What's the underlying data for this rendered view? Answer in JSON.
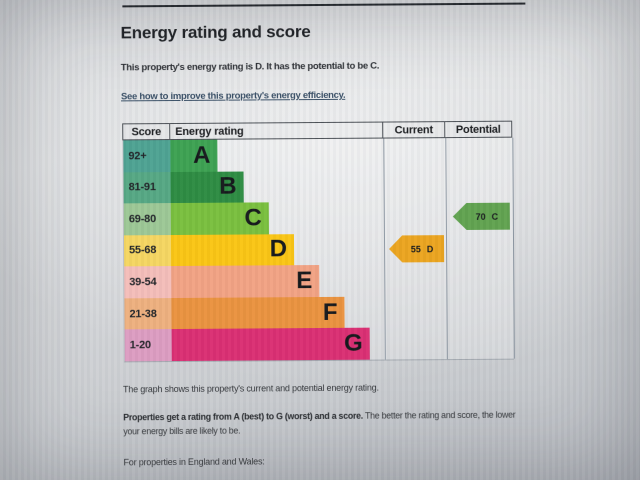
{
  "page": {
    "title": "Energy rating and score",
    "summary": "This property's energy rating is D. It has the potential to be C.",
    "improve_link_text": "See how to improve this property's energy efficiency.",
    "graph_caption": "The graph shows this property's current and potential energy rating.",
    "explainer_bold": "Properties get a rating from A (best) to G (worst) and a score.",
    "explainer_rest": " The better the rating and score, the lower your energy bills are likely to be.",
    "region_note": "For properties in England and Wales:"
  },
  "chart_data": {
    "type": "bar",
    "title": "Energy rating and score",
    "column_headers": [
      "Score",
      "Energy rating",
      "Current",
      "Potential"
    ],
    "bands": [
      {
        "score_range": "92+",
        "letter": "A",
        "bar_color": "#3ca151",
        "score_cell_color": "#4da292",
        "bar_length_pct": 22
      },
      {
        "score_range": "81-91",
        "letter": "B",
        "bar_color": "#2c8b41",
        "score_cell_color": "#55a783",
        "bar_length_pct": 34
      },
      {
        "score_range": "69-80",
        "letter": "C",
        "bar_color": "#79bf3d",
        "score_cell_color": "#9cc795",
        "bar_length_pct": 46
      },
      {
        "score_range": "55-68",
        "letter": "D",
        "bar_color": "#fac513",
        "score_cell_color": "#f5d660",
        "bar_length_pct": 58
      },
      {
        "score_range": "39-54",
        "letter": "E",
        "bar_color": "#f2a283",
        "score_cell_color": "#f4bdb9",
        "bar_length_pct": 70
      },
      {
        "score_range": "21-38",
        "letter": "F",
        "bar_color": "#ea923e",
        "score_cell_color": "#eeb07e",
        "bar_length_pct": 81
      },
      {
        "score_range": "1-20",
        "letter": "G",
        "bar_color": "#da2d72",
        "score_cell_color": "#dc9cc1",
        "bar_length_pct": 93
      }
    ],
    "current": {
      "score": "55",
      "band": "D",
      "arrow_color": "#eba41e",
      "aligned_band": "D"
    },
    "potential": {
      "score": "70",
      "band": "C",
      "arrow_color": "#60a24f",
      "aligned_band": "C"
    }
  }
}
